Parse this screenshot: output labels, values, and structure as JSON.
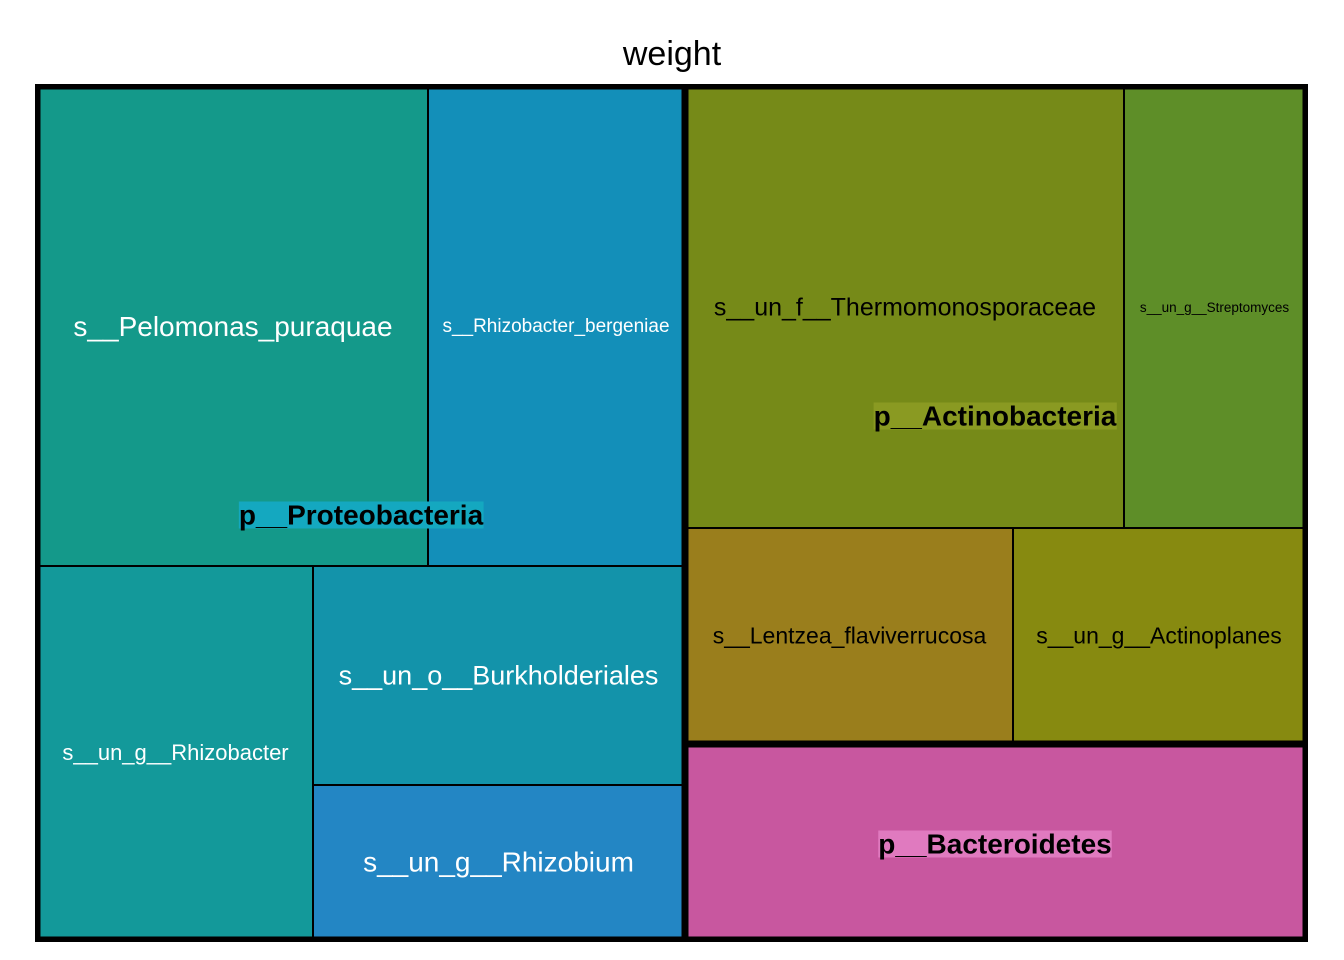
{
  "chart_data": {
    "type": "treemap",
    "title": "weight",
    "groups": [
      {
        "name": "p__Proteobacteria",
        "color": "#14A8C0",
        "children": [
          {
            "name": "s__Pelomonas_puraquae",
            "color": "#14998A"
          },
          {
            "name": "s__Rhizobacter_bergeniae",
            "color": "#138FB9"
          },
          {
            "name": "s__un_g__Rhizobacter",
            "color": "#13999A"
          },
          {
            "name": "s__un_o__Burkholderiales",
            "color": "#1393AA"
          },
          {
            "name": "s__un_g__Rhizobium",
            "color": "#2386C4"
          }
        ]
      },
      {
        "name": "p__Actinobacteria",
        "color": "#8A9A22",
        "children": [
          {
            "name": "s__un_f__Thermomonosporaceae",
            "color": "#768A18"
          },
          {
            "name": "s__un_g__Streptomyces",
            "color": "#5E8E28"
          },
          {
            "name": "s__Lentzea_flaviverrucosa",
            "color": "#9A7E1C"
          },
          {
            "name": "s__un_g__Actinoplanes",
            "color": "#878A10"
          }
        ]
      },
      {
        "name": "p__Bacteroidetes",
        "color": "#E07ABF",
        "children": [
          {
            "name": "",
            "color": "#C8579F"
          }
        ]
      }
    ]
  }
}
